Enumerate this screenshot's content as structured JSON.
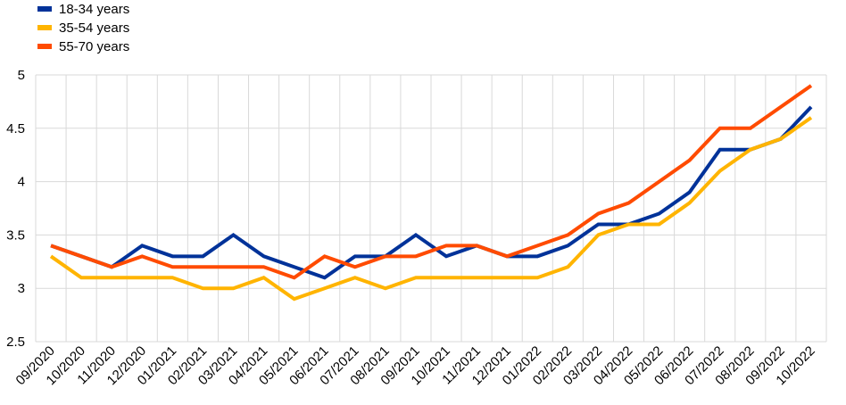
{
  "chart_data": {
    "type": "line",
    "title": "",
    "xlabel": "",
    "ylabel": "",
    "categories": [
      "09/2020",
      "10/2020",
      "11/2020",
      "12/2020",
      "01/2021",
      "02/2021",
      "03/2021",
      "04/2021",
      "05/2021",
      "06/2021",
      "07/2021",
      "08/2021",
      "09/2021",
      "10/2021",
      "11/2021",
      "12/2021",
      "01/2022",
      "02/2022",
      "03/2022",
      "04/2022",
      "05/2022",
      "06/2022",
      "07/2022",
      "08/2022",
      "09/2022",
      "10/2022"
    ],
    "ylim": [
      2.5,
      5
    ],
    "yticks": [
      "2.5",
      "3",
      "3.5",
      "4",
      "4.5",
      "5"
    ],
    "grid": "vertical and horizontal",
    "legend_position": "top-left",
    "series": [
      {
        "name": "18-34 years",
        "color": "#003299",
        "values": [
          3.4,
          3.3,
          3.2,
          3.4,
          3.3,
          3.3,
          3.5,
          3.3,
          3.2,
          3.1,
          3.3,
          3.3,
          3.5,
          3.3,
          3.4,
          3.3,
          3.3,
          3.4,
          3.6,
          3.6,
          3.7,
          3.9,
          4.3,
          4.3,
          4.4,
          4.7
        ]
      },
      {
        "name": "35-54 years",
        "color": "#FFB400",
        "values": [
          3.3,
          3.1,
          3.1,
          3.1,
          3.1,
          3.0,
          3.0,
          3.1,
          2.9,
          3.0,
          3.1,
          3.0,
          3.1,
          3.1,
          3.1,
          3.1,
          3.1,
          3.2,
          3.5,
          3.6,
          3.6,
          3.8,
          4.1,
          4.3,
          4.4,
          4.6
        ]
      },
      {
        "name": "55-70 years",
        "color": "#FF4B00",
        "values": [
          3.4,
          3.3,
          3.2,
          3.3,
          3.2,
          3.2,
          3.2,
          3.2,
          3.1,
          3.3,
          3.2,
          3.3,
          3.3,
          3.4,
          3.4,
          3.3,
          3.4,
          3.5,
          3.7,
          3.8,
          4.0,
          4.2,
          4.5,
          4.5,
          4.7,
          4.9
        ]
      }
    ]
  }
}
